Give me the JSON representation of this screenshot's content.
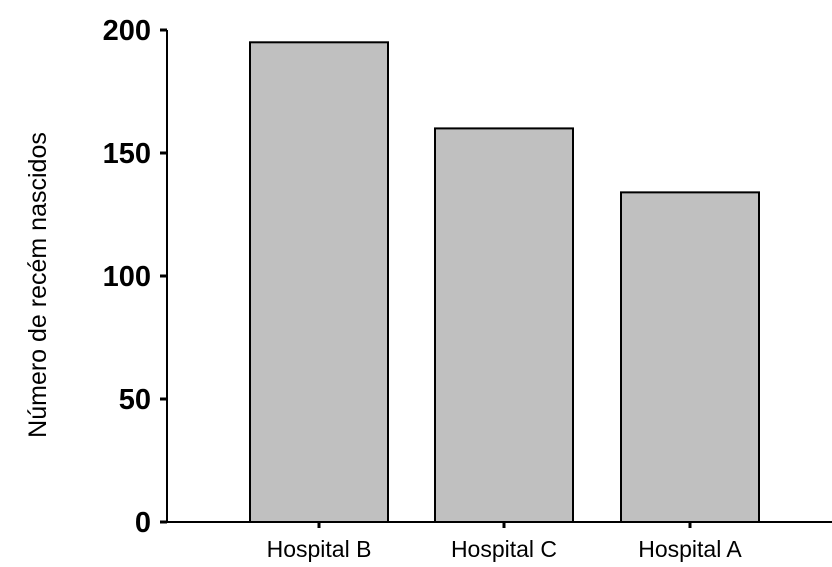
{
  "chart_data": {
    "type": "bar",
    "categories": [
      "Hospital B",
      "Hospital C",
      "Hospital A"
    ],
    "values": [
      195,
      160,
      134
    ],
    "ylabel": "Número de recém nascidos",
    "xlabel": "",
    "ylim": [
      0,
      200
    ],
    "yticks": [
      0,
      50,
      100,
      150,
      200
    ],
    "ytick_labels": [
      "0",
      "50",
      "100",
      "150",
      "200"
    ],
    "grid": false,
    "colors": {
      "bar_fill": "#c0c0c0",
      "bar_stroke": "#000000",
      "axis": "#000000"
    }
  }
}
